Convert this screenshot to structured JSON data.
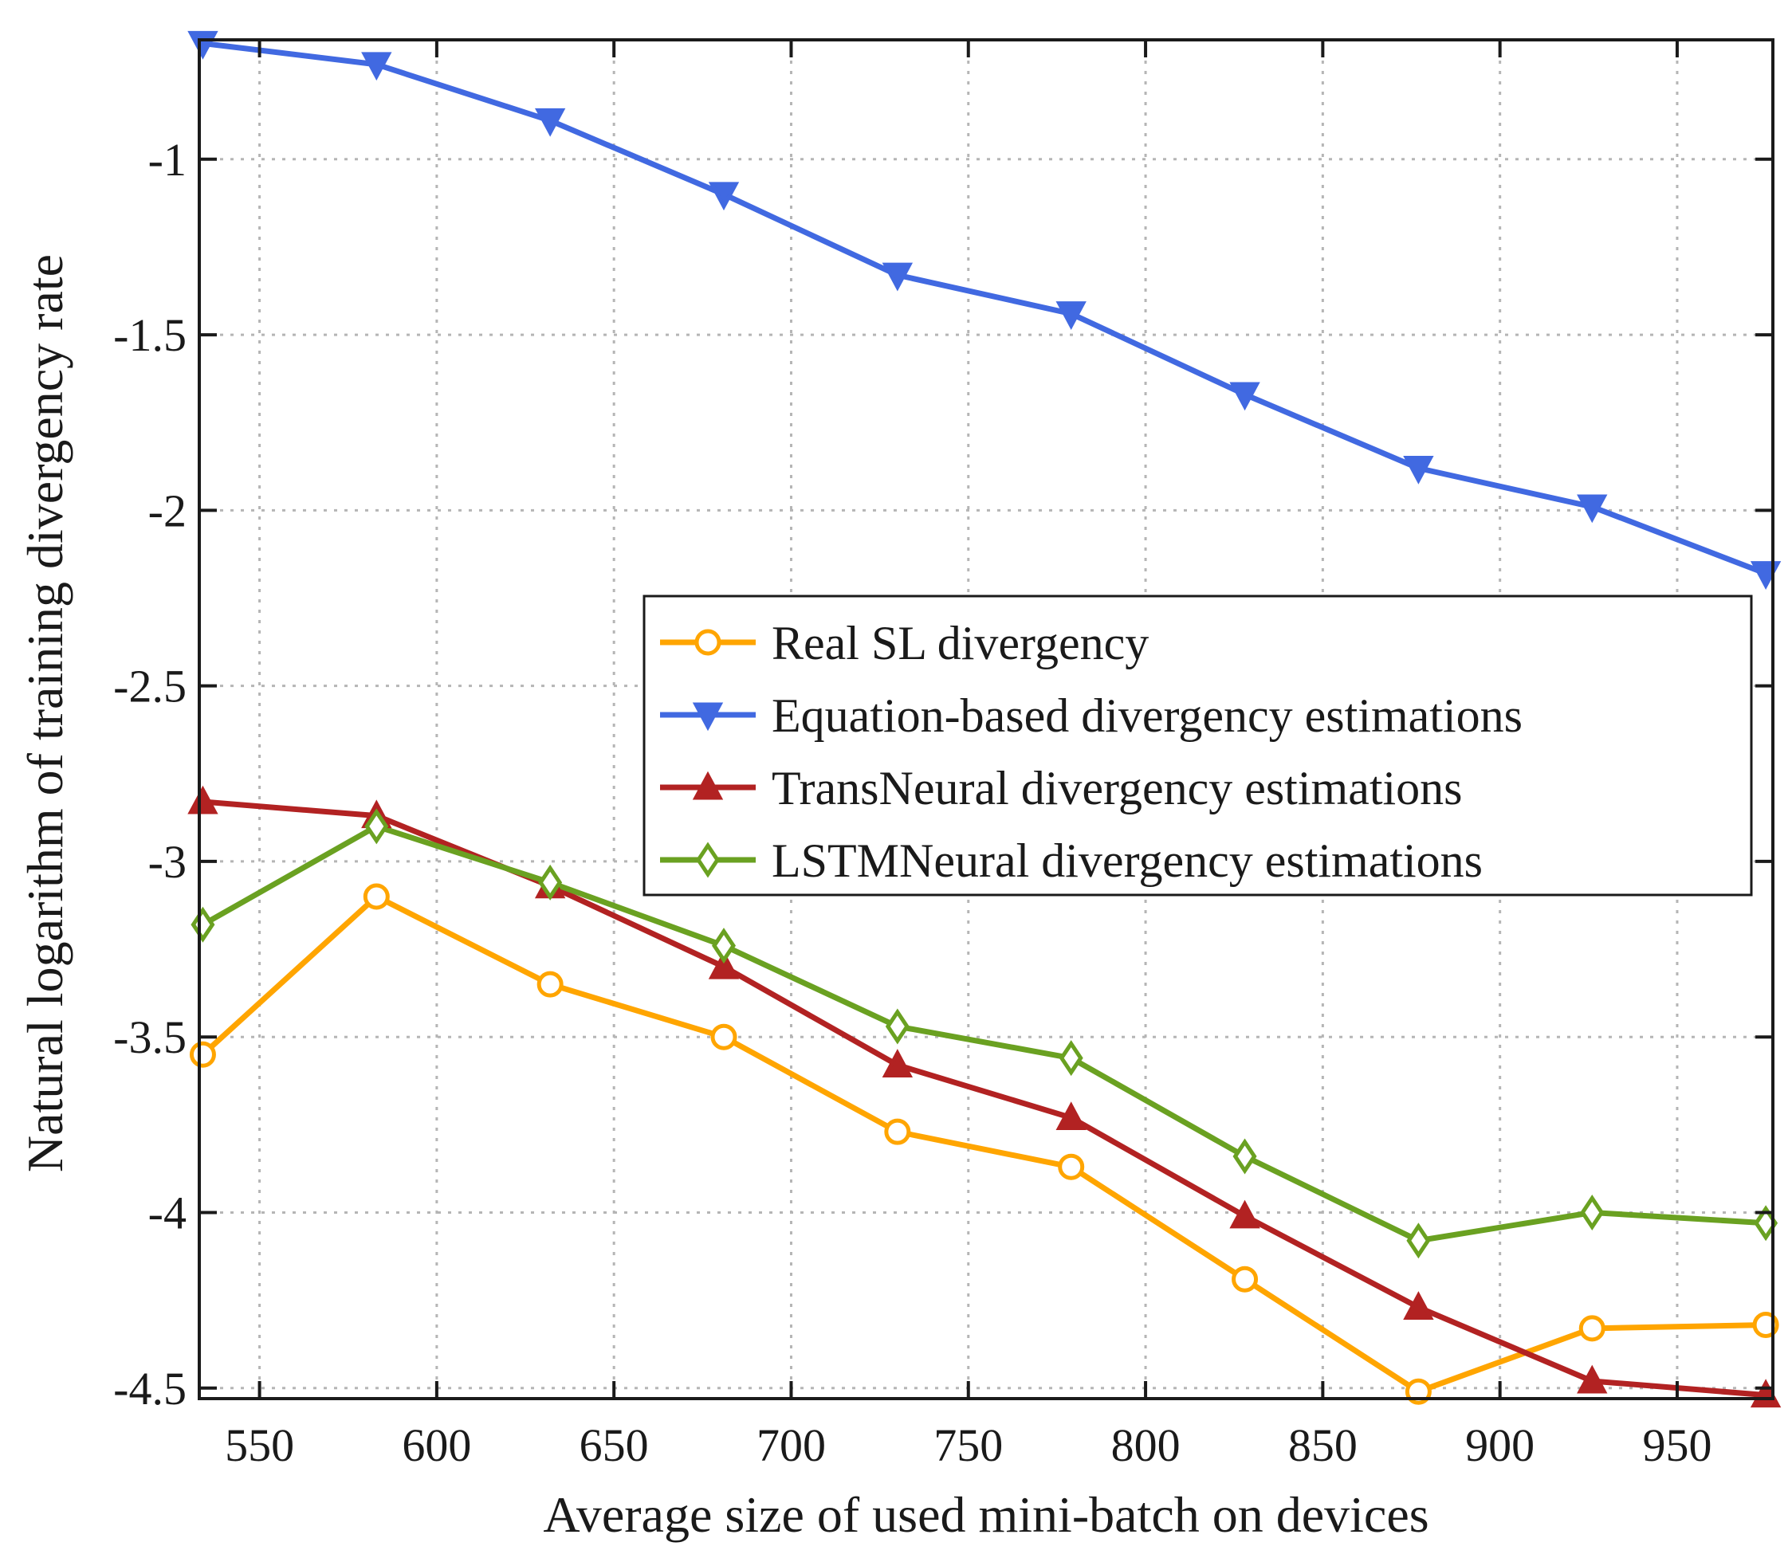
{
  "chart_data": {
    "type": "line",
    "title": "",
    "xlabel": "Average size of used mini-batch on devices",
    "ylabel": "Natural logarithm of training divergency rate",
    "xlim": [
      533,
      977
    ],
    "ylim": [
      -4.53,
      -0.66
    ],
    "xticks": [
      550,
      600,
      650,
      700,
      750,
      800,
      850,
      900,
      950
    ],
    "yticks": [
      -1,
      -1.5,
      -2,
      -2.5,
      -3,
      -3.5,
      -4,
      -4.5
    ],
    "xtick_labels": [
      "550",
      "600",
      "650",
      "700",
      "750",
      "800",
      "850",
      "900",
      "950"
    ],
    "ytick_labels": [
      "-1",
      "-1.5",
      "-2",
      "-2.5",
      "-3",
      "-3.5",
      "-4",
      "-4.5"
    ],
    "grid": true,
    "legend_position": "center-right",
    "x": [
      534,
      583,
      632,
      681,
      730,
      779,
      828,
      877,
      926,
      975
    ],
    "series": [
      {
        "name": "Real SL divergency",
        "color": "#ffa500",
        "marker": "circle",
        "values": [
          -3.55,
          -3.1,
          -3.35,
          -3.5,
          -3.77,
          -3.87,
          -4.19,
          -4.51,
          -4.33,
          -4.32
        ]
      },
      {
        "name": "Equation-based divergency estimations",
        "color": "#4169e1",
        "marker": "triangle-down",
        "values": [
          -0.67,
          -0.73,
          -0.89,
          -1.1,
          -1.33,
          -1.44,
          -1.67,
          -1.88,
          -1.99,
          -2.18
        ]
      },
      {
        "name": "TransNeural divergency estimations",
        "color": "#b22222",
        "marker": "triangle-up",
        "values": [
          -2.83,
          -2.87,
          -3.07,
          -3.3,
          -3.58,
          -3.73,
          -4.01,
          -4.27,
          -4.48,
          -4.52
        ]
      },
      {
        "name": "LSTMNeural divergency estimations",
        "color": "#6aa121",
        "marker": "diamond",
        "values": [
          -3.18,
          -2.9,
          -3.06,
          -3.24,
          -3.47,
          -3.56,
          -3.84,
          -4.08,
          -4.0,
          -4.03
        ]
      }
    ]
  }
}
